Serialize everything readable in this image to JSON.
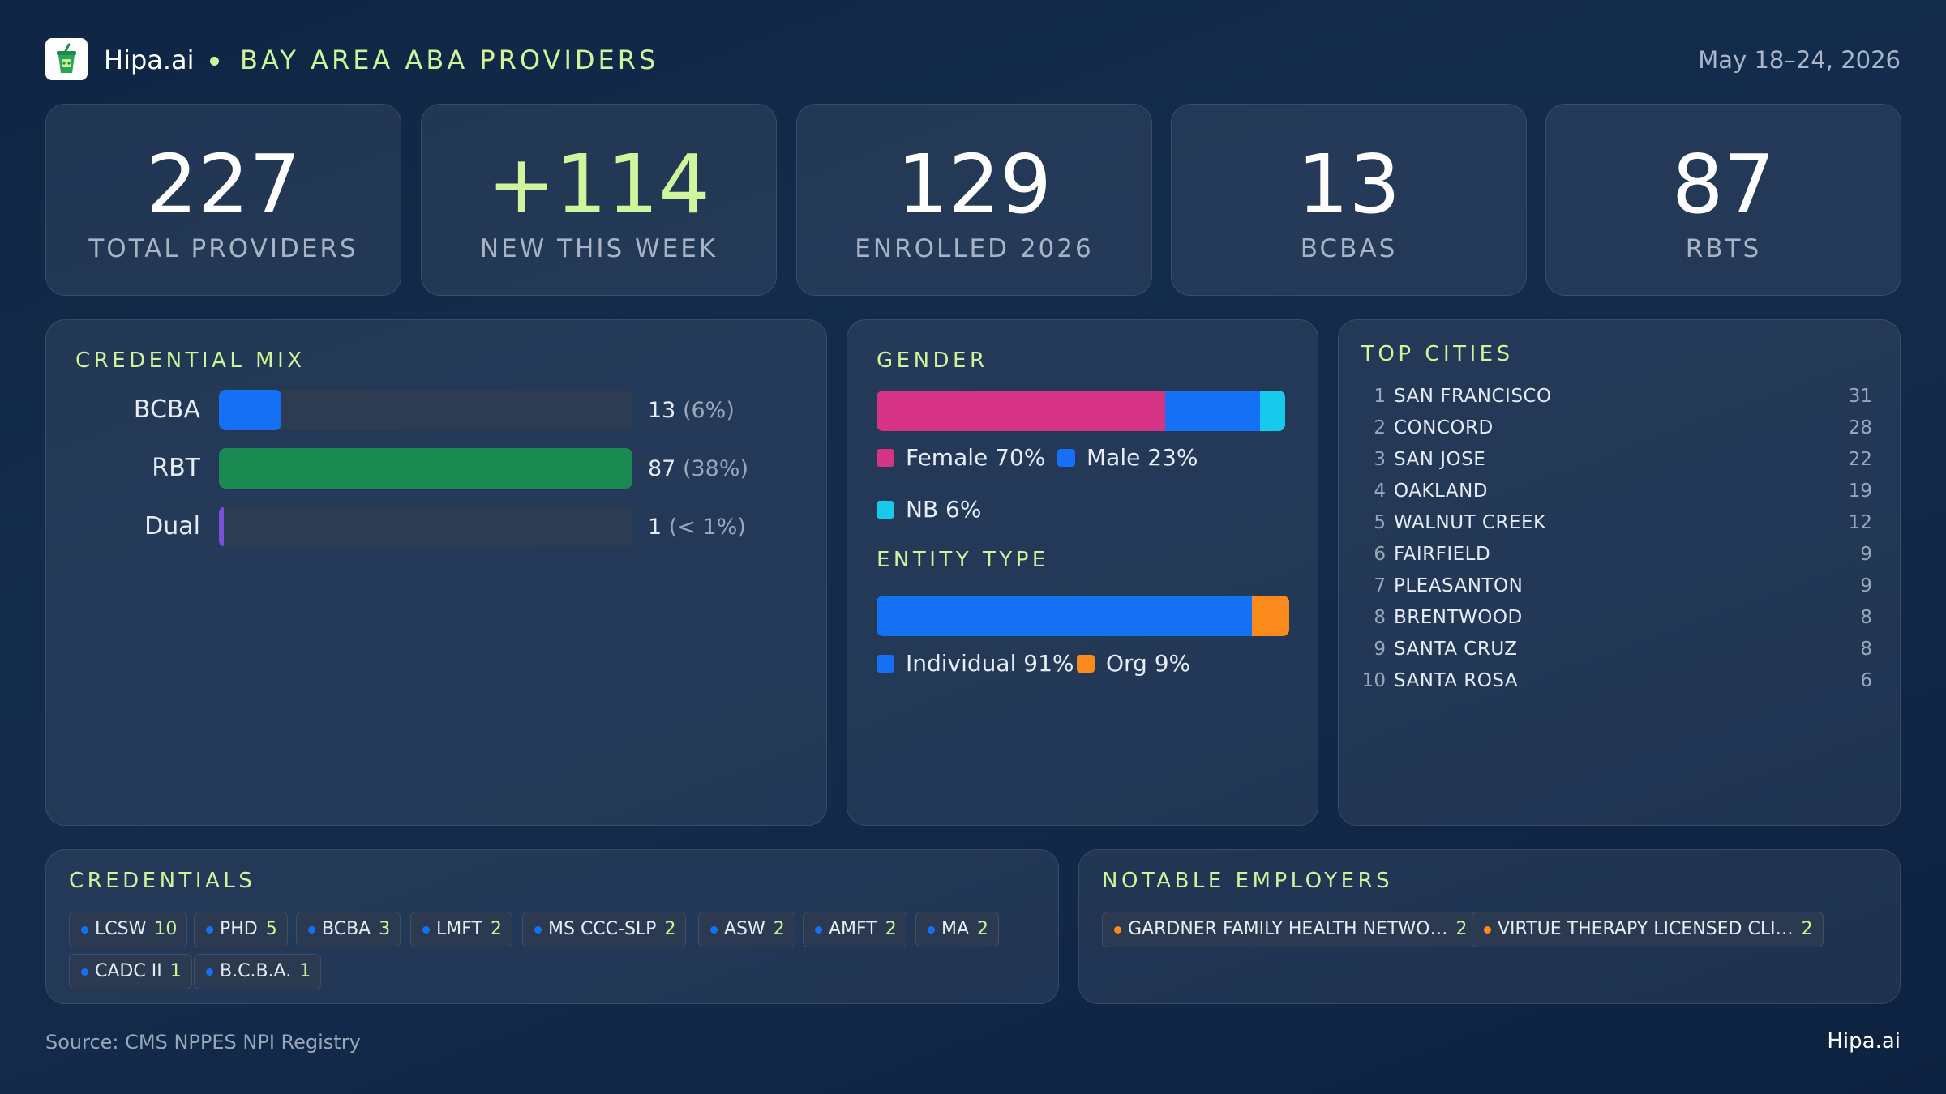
{
  "header": {
    "brand": "Hipa.ai",
    "title": "BAY AREA ABA PROVIDERS",
    "date_range": "May 18–24, 2026",
    "logo_icon": "cup-logo-icon"
  },
  "stats": [
    {
      "value": "227",
      "label": "TOTAL  PROVIDERS"
    },
    {
      "value": "+114",
      "label": "NEW THIS WEEK"
    },
    {
      "value": "129",
      "label": "ENROLLED 2026"
    },
    {
      "value": "13",
      "label": "BCBAS"
    },
    {
      "value": "87",
      "label": "RBTS"
    }
  ],
  "credential_mix": {
    "title": "CREDENTIAL  MIX",
    "rows": [
      {
        "label": "BCBA",
        "count": "13",
        "pct": "(6%)",
        "fraction": 0.15,
        "color": "#1570f5"
      },
      {
        "label": "RBT",
        "count": "87",
        "pct": "(38%)",
        "fraction": 1.0,
        "color": "#1b8a52"
      },
      {
        "label": "Dual",
        "count": "1",
        "pct": "(< 1%)",
        "fraction": 0.012,
        "color": "#7b4fd6"
      }
    ]
  },
  "gender": {
    "title": "GENDER",
    "segments": [
      {
        "label": "Female 70%",
        "share": 70,
        "color": "#d63384"
      },
      {
        "label": "Male 23%",
        "share": 23,
        "color": "#1570f5"
      },
      {
        "label": "NB 6%",
        "share": 6,
        "color": "#17c9ea"
      }
    ]
  },
  "entity_type": {
    "title": "ENTITY  TYPE",
    "segments": [
      {
        "label": "Individual 91%",
        "share": 91,
        "color": "#1570f5"
      },
      {
        "label": "Org 9%",
        "share": 9,
        "color": "#fb8a1c"
      }
    ]
  },
  "top_cities": {
    "title": "TOP  CITIES",
    "rows": [
      {
        "rank": "1",
        "name": "SAN FRANCISCO",
        "count": "31"
      },
      {
        "rank": "2",
        "name": "CONCORD",
        "count": "28"
      },
      {
        "rank": "3",
        "name": "SAN JOSE",
        "count": "22"
      },
      {
        "rank": "4",
        "name": "OAKLAND",
        "count": "19"
      },
      {
        "rank": "5",
        "name": "WALNUT CREEK",
        "count": "12"
      },
      {
        "rank": "6",
        "name": "FAIRFIELD",
        "count": "9"
      },
      {
        "rank": "7",
        "name": "PLEASANTON",
        "count": "9"
      },
      {
        "rank": "8",
        "name": "BRENTWOOD",
        "count": "8"
      },
      {
        "rank": "9",
        "name": "SANTA CRUZ",
        "count": "8"
      },
      {
        "rank": "10",
        "name": "SANTA ROSA",
        "count": "6"
      }
    ]
  },
  "credentials": {
    "title": "CREDENTIALS",
    "dot_color": "#1570f5",
    "chips": [
      {
        "name": "LCSW",
        "count": "10"
      },
      {
        "name": "PHD",
        "count": "5"
      },
      {
        "name": "BCBA",
        "count": "3"
      },
      {
        "name": "LMFT",
        "count": "2"
      },
      {
        "name": "MS CCC-SLP",
        "count": "2"
      },
      {
        "name": "ASW",
        "count": "2"
      },
      {
        "name": "AMFT",
        "count": "2"
      },
      {
        "name": "MA",
        "count": "2"
      },
      {
        "name": "CADC II",
        "count": "1"
      },
      {
        "name": "B.C.B.A.",
        "count": "1"
      }
    ]
  },
  "employers": {
    "title": "NOTABLE  EMPLOYERS",
    "dot_color": "#fb8a1c",
    "chips": [
      {
        "name": "GARDNER FAMILY  HEALTH  NETWO…",
        "count": "2"
      },
      {
        "name": "VIRTUE THERAPY LICENSED CLI…",
        "count": "2"
      }
    ]
  },
  "footer": {
    "source": "Source: CMS NPPES NPI Registry",
    "brand": "Hipa.ai"
  }
}
